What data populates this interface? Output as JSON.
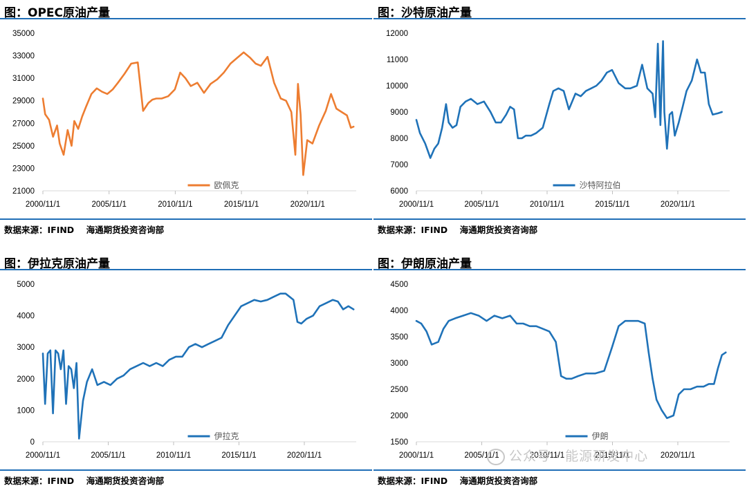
{
  "charts": [
    {
      "title": "图：OPEC原油产量",
      "source": "数据来源：IFIND    海通期货投资咨询部",
      "legend": "欧佩克",
      "color": "#ed7d31"
    },
    {
      "title": "图：沙特原油产量",
      "source": "数据来源：IFIND    海通期货投资咨询部",
      "legend": "沙特阿拉伯",
      "color": "#1f72b8"
    },
    {
      "title": "图：伊拉克原油产量",
      "source": "数据来源：IFIND    海通期货投资咨询部",
      "legend": "伊拉克",
      "color": "#1f72b8"
    },
    {
      "title": "图：伊朗原油产量",
      "source": "数据来源：IFIND    海通期货投资咨询部",
      "legend": "伊朗",
      "color": "#1f72b8"
    }
  ],
  "watermark": "公众号 · 能源研发中心",
  "chart_data": [
    {
      "type": "line",
      "title": "图：OPEC原油产量",
      "ylim": [
        21000,
        35000
      ],
      "yticks": [
        21000,
        23000,
        25000,
        27000,
        29000,
        31000,
        33000,
        35000
      ],
      "xlim": [
        2000.83,
        2024.5
      ],
      "xticks": [
        "2000/11/1",
        "2005/11/1",
        "2010/11/1",
        "2015/11/1",
        "2020/11/1"
      ],
      "series": [
        {
          "name": "欧佩克",
          "x": [
            2000.83,
            2001.0,
            2001.3,
            2001.6,
            2001.9,
            2002.1,
            2002.4,
            2002.7,
            2003.0,
            2003.2,
            2003.5,
            2003.8,
            2004.1,
            2004.5,
            2004.9,
            2005.3,
            2005.7,
            2006.1,
            2006.5,
            2007.0,
            2007.5,
            2008.0,
            2008.4,
            2008.8,
            2009.1,
            2009.4,
            2009.8,
            2010.3,
            2010.8,
            2011.2,
            2011.6,
            2012.0,
            2012.5,
            2013.0,
            2013.5,
            2014.0,
            2014.5,
            2015.0,
            2015.5,
            2016.0,
            2016.5,
            2016.9,
            2017.3,
            2017.8,
            2018.3,
            2018.8,
            2019.2,
            2019.6,
            2019.9,
            2020.1,
            2020.3,
            2020.5,
            2020.8,
            2021.2,
            2021.7,
            2022.2,
            2022.6,
            2023.0,
            2023.4,
            2023.8,
            2024.1,
            2024.3
          ],
          "values": [
            29200,
            27800,
            27300,
            25800,
            26800,
            25200,
            24200,
            26400,
            25000,
            27200,
            26500,
            27600,
            28500,
            29600,
            30100,
            29800,
            29600,
            30000,
            30600,
            31400,
            32300,
            32400,
            28100,
            28800,
            29100,
            29200,
            29200,
            29400,
            30000,
            31500,
            31000,
            30300,
            30600,
            29700,
            30500,
            30900,
            31500,
            32300,
            32800,
            33300,
            32800,
            32300,
            32100,
            32900,
            30600,
            29200,
            29000,
            28000,
            24200,
            30500,
            27800,
            22400,
            25500,
            25200,
            26800,
            28100,
            29600,
            28300,
            28000,
            27700,
            26600,
            26700
          ]
        }
      ]
    },
    {
      "type": "line",
      "title": "图：沙特原油产量",
      "ylim": [
        6000,
        12000
      ],
      "yticks": [
        6000,
        7000,
        8000,
        9000,
        10000,
        11000,
        12000
      ],
      "xlim": [
        2000.83,
        2024.8
      ],
      "xticks": [
        "2000/11/1",
        "2005/11/1",
        "2010/11/1",
        "2015/11/1",
        "2020/11/1"
      ],
      "series": [
        {
          "name": "沙特阿拉伯",
          "x": [
            2000.83,
            2001.1,
            2001.5,
            2001.9,
            2002.2,
            2002.5,
            2002.8,
            2003.1,
            2003.3,
            2003.6,
            2003.9,
            2004.2,
            2004.6,
            2005.0,
            2005.5,
            2006.0,
            2006.5,
            2006.9,
            2007.3,
            2007.7,
            2008.0,
            2008.3,
            2008.6,
            2008.9,
            2009.2,
            2009.6,
            2010.0,
            2010.5,
            2011.0,
            2011.3,
            2011.7,
            2012.1,
            2012.5,
            2013.0,
            2013.4,
            2013.8,
            2014.2,
            2014.6,
            2015.0,
            2015.4,
            2015.8,
            2016.3,
            2016.8,
            2017.2,
            2017.7,
            2018.1,
            2018.5,
            2018.9,
            2019.1,
            2019.3,
            2019.5,
            2019.7,
            2019.8,
            2020.0,
            2020.2,
            2020.4,
            2020.6,
            2020.9,
            2021.2,
            2021.5,
            2021.9,
            2022.3,
            2022.6,
            2022.9,
            2023.2,
            2023.5,
            2023.9,
            2024.2
          ],
          "values": [
            8700,
            8200,
            7800,
            7250,
            7600,
            7800,
            8400,
            9300,
            8600,
            8400,
            8500,
            9200,
            9400,
            9500,
            9300,
            9400,
            9000,
            8600,
            8600,
            8900,
            9200,
            9100,
            8000,
            8000,
            8100,
            8100,
            8200,
            8400,
            9300,
            9800,
            9900,
            9800,
            9100,
            9700,
            9600,
            9800,
            9900,
            10000,
            10200,
            10500,
            10600,
            10100,
            9900,
            9900,
            10000,
            10800,
            9900,
            9700,
            8800,
            11600,
            8500,
            11700,
            9000,
            7600,
            8900,
            9000,
            8100,
            8600,
            9200,
            9800,
            10200,
            11000,
            10500,
            10500,
            9300,
            8900,
            8950,
            9000
          ]
        }
      ]
    },
    {
      "type": "line",
      "title": "图：伊拉克原油产量",
      "ylim": [
        0,
        5000
      ],
      "yticks": [
        0,
        1000,
        2000,
        3000,
        4000,
        5000
      ],
      "xlim": [
        2000.83,
        2024.8
      ],
      "xticks": [
        "2000/11/1",
        "2005/11/1",
        "2010/11/1",
        "2015/11/1",
        "2020/11/1"
      ],
      "series": [
        {
          "name": "伊拉克",
          "x": [
            2000.83,
            2001.0,
            2001.2,
            2001.4,
            2001.6,
            2001.8,
            2002.0,
            2002.2,
            2002.4,
            2002.6,
            2002.8,
            2003.0,
            2003.2,
            2003.4,
            2003.6,
            2003.9,
            2004.2,
            2004.6,
            2005.0,
            2005.5,
            2006.0,
            2006.5,
            2007.0,
            2007.5,
            2008.0,
            2008.5,
            2009.0,
            2009.5,
            2010.0,
            2010.5,
            2011.0,
            2011.5,
            2012.0,
            2012.5,
            2013.0,
            2013.5,
            2014.0,
            2014.5,
            2015.0,
            2015.5,
            2016.0,
            2016.5,
            2017.0,
            2017.5,
            2018.0,
            2018.5,
            2019.0,
            2019.4,
            2019.7,
            2020.0,
            2020.3,
            2020.6,
            2021.0,
            2021.5,
            2022.0,
            2022.5,
            2023.0,
            2023.4,
            2023.8,
            2024.2,
            2024.6
          ],
          "values": [
            2800,
            1200,
            2800,
            2900,
            900,
            2900,
            2800,
            2300,
            2900,
            1200,
            2400,
            2300,
            1700,
            2500,
            100,
            1300,
            1900,
            2300,
            1800,
            1900,
            1800,
            2000,
            2100,
            2300,
            2400,
            2500,
            2400,
            2500,
            2400,
            2600,
            2700,
            2700,
            3000,
            3100,
            3000,
            3100,
            3200,
            3300,
            3700,
            4000,
            4300,
            4400,
            4500,
            4450,
            4500,
            4600,
            4700,
            4700,
            4600,
            4500,
            3800,
            3750,
            3900,
            4000,
            4300,
            4400,
            4500,
            4450,
            4200,
            4300,
            4200
          ]
        }
      ]
    },
    {
      "type": "line",
      "title": "图：伊朗原油产量",
      "ylim": [
        1500,
        4500
      ],
      "yticks": [
        1500,
        2000,
        2500,
        3000,
        3500,
        4000,
        4500
      ],
      "xlim": [
        2000.83,
        2024.8
      ],
      "xticks": [
        "2000/11/1",
        "2005/11/1",
        "2010/11/1",
        "2015/11/1",
        "2020/11/1"
      ],
      "series": [
        {
          "name": "伊朗",
          "x": [
            2000.83,
            2001.2,
            2001.6,
            2002.0,
            2002.5,
            2002.9,
            2003.3,
            2003.8,
            2004.4,
            2005.0,
            2005.6,
            2006.2,
            2006.8,
            2007.4,
            2008.0,
            2008.5,
            2009.0,
            2009.5,
            2010.0,
            2010.5,
            2011.0,
            2011.5,
            2011.9,
            2012.3,
            2012.7,
            2013.2,
            2013.8,
            2014.5,
            2015.2,
            2015.8,
            2016.3,
            2016.8,
            2017.3,
            2017.8,
            2018.3,
            2018.6,
            2018.9,
            2019.2,
            2019.6,
            2020.0,
            2020.5,
            2020.9,
            2021.3,
            2021.8,
            2022.3,
            2022.8,
            2023.2,
            2023.6,
            2023.9,
            2024.2,
            2024.5
          ],
          "values": [
            3800,
            3750,
            3600,
            3350,
            3400,
            3650,
            3800,
            3850,
            3900,
            3950,
            3900,
            3800,
            3900,
            3850,
            3900,
            3750,
            3750,
            3700,
            3700,
            3650,
            3600,
            3400,
            2750,
            2700,
            2700,
            2750,
            2800,
            2800,
            2850,
            3300,
            3700,
            3800,
            3800,
            3800,
            3750,
            3200,
            2700,
            2300,
            2100,
            1950,
            2000,
            2400,
            2500,
            2500,
            2550,
            2550,
            2600,
            2600,
            2900,
            3150,
            3200
          ]
        }
      ]
    }
  ]
}
